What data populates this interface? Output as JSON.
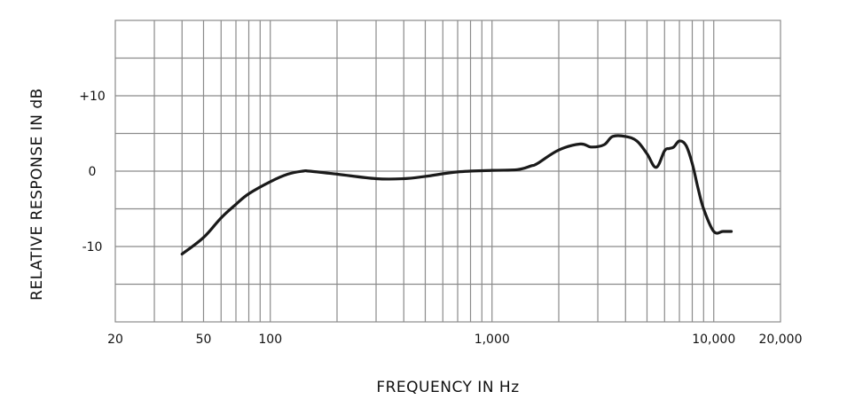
{
  "chart_data": {
    "type": "line",
    "title": "",
    "xlabel": "FREQUENCY IN Hz",
    "ylabel": "RELATIVE RESPONSE IN dB",
    "x_scale": "log",
    "xlim": [
      20,
      20000
    ],
    "ylim": [
      -20,
      20
    ],
    "grid": true,
    "x_ticks": [
      {
        "value": 20,
        "label": "20"
      },
      {
        "value": 50,
        "label": "50"
      },
      {
        "value": 100,
        "label": "100"
      },
      {
        "value": 1000,
        "label": "1,000"
      },
      {
        "value": 10000,
        "label": "10,000"
      },
      {
        "value": 20000,
        "label": "20,000"
      }
    ],
    "y_ticks": [
      {
        "value": 10,
        "label": "+10"
      },
      {
        "value": 0,
        "label": "0"
      },
      {
        "value": -10,
        "label": "-10"
      }
    ],
    "series": [
      {
        "color": "#1a1a1a",
        "x": [
          40,
          50,
          60,
          70,
          80,
          100,
          120,
          140,
          150,
          200,
          300,
          400,
          500,
          700,
          1000,
          1300,
          1500,
          1600,
          2000,
          2500,
          2800,
          3200,
          3500,
          4000,
          4500,
          5000,
          5500,
          6000,
          6300,
          6600,
          7000,
          7500,
          8000,
          8500,
          9000,
          10000,
          11000,
          12000
        ],
        "y": [
          -11,
          -8.8,
          -6.2,
          -4.4,
          -3,
          -1.4,
          -0.4,
          0,
          0,
          -0.4,
          -1,
          -1,
          -0.7,
          -0.1,
          0.1,
          0.2,
          0.7,
          1,
          2.8,
          3.6,
          3.2,
          3.5,
          4.6,
          4.6,
          4,
          2.3,
          0.5,
          2.7,
          3,
          3.2,
          4,
          3.4,
          1,
          -2.3,
          -5,
          -8,
          -8,
          -8
        ]
      }
    ]
  }
}
